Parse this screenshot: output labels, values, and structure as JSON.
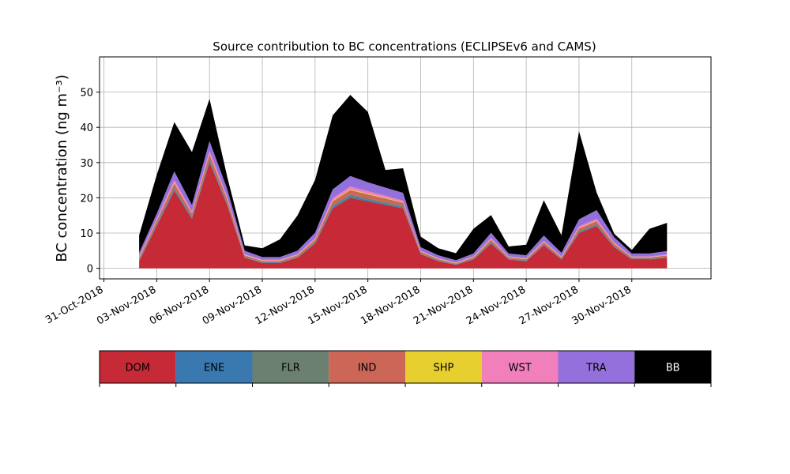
{
  "chart_data": {
    "type": "area",
    "stacked": true,
    "title": "Source contribution to BC concentrations (ECLIPSEv6 and CAMS)",
    "ylabel": "BC concentration (ng m⁻³)",
    "xlabel": "",
    "ylim": [
      -3,
      60
    ],
    "xlim": [
      "2018-10-30T18:00",
      "2018-12-04T12:00"
    ],
    "yticks": [
      0,
      10,
      20,
      30,
      40,
      50
    ],
    "xticks": [
      {
        "date": "2018-10-31",
        "label": "31-Oct-2018"
      },
      {
        "date": "2018-11-03",
        "label": "03-Nov-2018"
      },
      {
        "date": "2018-11-06",
        "label": "06-Nov-2018"
      },
      {
        "date": "2018-11-09",
        "label": "09-Nov-2018"
      },
      {
        "date": "2018-11-12",
        "label": "12-Nov-2018"
      },
      {
        "date": "2018-11-15",
        "label": "15-Nov-2018"
      },
      {
        "date": "2018-11-18",
        "label": "18-Nov-2018"
      },
      {
        "date": "2018-11-21",
        "label": "21-Nov-2018"
      },
      {
        "date": "2018-11-24",
        "label": "24-Nov-2018"
      },
      {
        "date": "2018-11-27",
        "label": "27-Nov-2018"
      },
      {
        "date": "2018-11-30",
        "label": "30-Nov-2018"
      }
    ],
    "grid": true,
    "legend_position": "below",
    "x": [
      "2018-11-02",
      "2018-11-03",
      "2018-11-04",
      "2018-11-05",
      "2018-11-06",
      "2018-11-07",
      "2018-11-08",
      "2018-11-09",
      "2018-11-10",
      "2018-11-11",
      "2018-11-12",
      "2018-11-13",
      "2018-11-14",
      "2018-11-15",
      "2018-11-16",
      "2018-11-17",
      "2018-11-18",
      "2018-11-19",
      "2018-11-20",
      "2018-11-21",
      "2018-11-22",
      "2018-11-23",
      "2018-11-24",
      "2018-11-25",
      "2018-11-26",
      "2018-11-27",
      "2018-11-28",
      "2018-11-29",
      "2018-11-30",
      "2018-12-01",
      "2018-12-02"
    ],
    "series": [
      {
        "name": "DOM",
        "color": "#c52a36",
        "values": [
          2.0,
          12.0,
          22.0,
          14.0,
          30.0,
          18.0,
          3.0,
          1.5,
          1.5,
          3.0,
          7.0,
          17.0,
          20.0,
          19.0,
          18.0,
          17.0,
          4.0,
          2.0,
          1.0,
          2.5,
          7.0,
          2.5,
          2.0,
          6.5,
          2.5,
          10.0,
          12.0,
          6.0,
          2.5,
          2.5,
          3.0
        ]
      },
      {
        "name": "ENE",
        "color": "#3a78b0",
        "values": [
          0.2,
          0.3,
          0.4,
          0.3,
          0.4,
          0.3,
          0.1,
          0.1,
          0.1,
          0.1,
          0.2,
          0.4,
          0.4,
          0.4,
          0.3,
          0.3,
          0.1,
          0.1,
          0.1,
          0.1,
          0.2,
          0.1,
          0.1,
          0.1,
          0.1,
          0.2,
          0.2,
          0.1,
          0.1,
          0.1,
          0.1
        ]
      },
      {
        "name": "FLR",
        "color": "#6c8072",
        "values": [
          0.3,
          0.4,
          0.5,
          0.4,
          0.6,
          0.4,
          0.2,
          0.2,
          0.2,
          0.2,
          0.3,
          0.5,
          0.6,
          0.5,
          0.5,
          0.4,
          0.2,
          0.2,
          0.1,
          0.2,
          0.3,
          0.2,
          0.2,
          0.3,
          0.2,
          0.4,
          0.4,
          0.3,
          0.2,
          0.2,
          0.2
        ]
      },
      {
        "name": "IND",
        "color": "#cc6656",
        "values": [
          0.5,
          0.8,
          1.2,
          0.9,
          1.3,
          1.0,
          0.4,
          0.3,
          0.3,
          0.4,
          0.6,
          1.1,
          1.2,
          1.1,
          1.0,
          0.9,
          0.4,
          0.3,
          0.2,
          0.3,
          0.6,
          0.3,
          0.3,
          0.5,
          0.3,
          0.7,
          0.8,
          0.5,
          0.3,
          0.3,
          0.3
        ]
      },
      {
        "name": "SHP",
        "color": "#e6cf2e",
        "values": [
          0.1,
          0.1,
          0.2,
          0.1,
          0.2,
          0.1,
          0.1,
          0.1,
          0.1,
          0.1,
          0.1,
          0.2,
          0.2,
          0.2,
          0.2,
          0.1,
          0.1,
          0.1,
          0.1,
          0.1,
          0.1,
          0.1,
          0.1,
          0.1,
          0.1,
          0.1,
          0.1,
          0.1,
          0.1,
          0.1,
          0.1
        ]
      },
      {
        "name": "WST",
        "color": "#f07fbc",
        "values": [
          0.3,
          0.5,
          0.7,
          0.5,
          0.8,
          0.6,
          0.2,
          0.2,
          0.2,
          0.2,
          0.4,
          0.7,
          0.8,
          0.7,
          0.6,
          0.5,
          0.2,
          0.2,
          0.1,
          0.2,
          0.4,
          0.2,
          0.2,
          0.3,
          0.2,
          0.5,
          0.5,
          0.3,
          0.2,
          0.2,
          0.2
        ]
      },
      {
        "name": "TRA",
        "color": "#9370db",
        "values": [
          1.0,
          1.4,
          2.5,
          1.8,
          2.8,
          2.2,
          1.0,
          0.8,
          0.8,
          1.0,
          1.5,
          2.5,
          3.0,
          2.5,
          2.3,
          2.2,
          1.0,
          0.8,
          0.7,
          0.8,
          1.5,
          0.8,
          0.8,
          1.5,
          1.0,
          2.0,
          2.5,
          1.5,
          0.8,
          0.8,
          1.0
        ]
      },
      {
        "name": "BB",
        "color": "#000000",
        "values": [
          5.0,
          11.0,
          14.0,
          15.0,
          12.0,
          3.5,
          1.5,
          2.5,
          5.0,
          10.0,
          15.0,
          21.0,
          23.0,
          20.0,
          5.0,
          7.0,
          3.0,
          2.0,
          2.0,
          7.0,
          5.0,
          2.0,
          3.0,
          10.0,
          5.0,
          25.0,
          5.0,
          1.0,
          1.0,
          7.0,
          8.0
        ]
      }
    ]
  }
}
